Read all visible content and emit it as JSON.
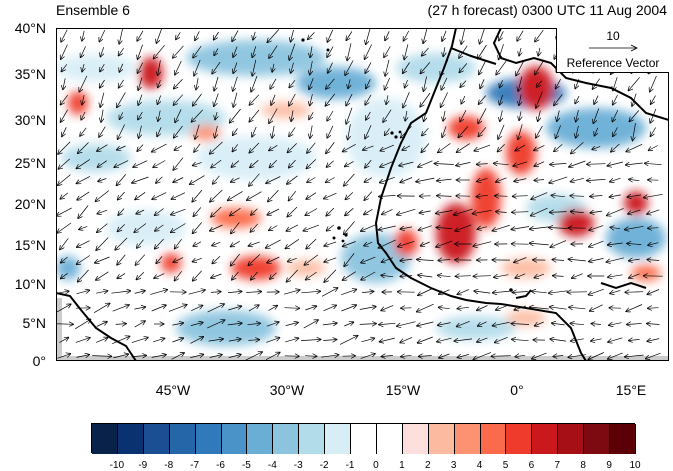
{
  "titles": {
    "left": "Ensemble 6",
    "right": "(27 h forecast) 0300 UTC 11 Aug 2004"
  },
  "reference_vector": {
    "magnitude": "10",
    "label": "Reference Vector"
  },
  "y_axis_labels": [
    "40°N",
    "35°N",
    "30°N",
    "25°N",
    "20°N",
    "15°N",
    "10°N",
    "5°N",
    "0°"
  ],
  "x_axis_labels": [
    "45°W",
    "30°W",
    "15°W",
    "0°",
    "15°E"
  ],
  "colorbar": {
    "labels": [
      "-10",
      "-9",
      "-8",
      "-7",
      "-6",
      "-5",
      "-4",
      "-3",
      "-2",
      "-1",
      "0",
      "1",
      "2",
      "3",
      "4",
      "5",
      "6",
      "7",
      "8",
      "9",
      "10"
    ],
    "colors": [
      "#08224a",
      "#0b3270",
      "#1a4f93",
      "#2566a8",
      "#3079ba",
      "#4a93c8",
      "#6aaed6",
      "#8cc4df",
      "#b3dcea",
      "#d8eef7",
      "#ffffff",
      "#ffffff",
      "#fde0dd",
      "#fcbba1",
      "#fc9272",
      "#fb6a4a",
      "#ef3b2c",
      "#cb181d",
      "#a50f15",
      "#7d0a10",
      "#5c0008"
    ]
  },
  "map": {
    "type": "filled-contour wind anomaly map with vectors",
    "lon_range": [
      -60,
      20
    ],
    "lat_range": [
      0,
      40
    ]
  }
}
